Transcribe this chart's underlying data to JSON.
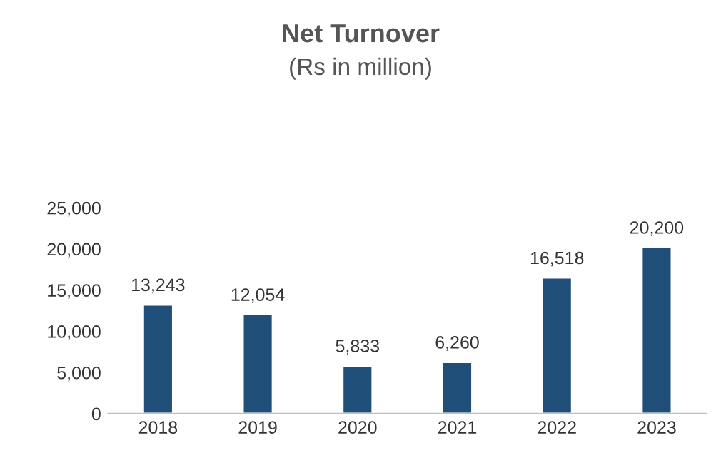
{
  "chart_data": {
    "type": "bar",
    "title": "Net Turnover",
    "subtitle": "(Rs in million)",
    "categories": [
      "2018",
      "2019",
      "2020",
      "2021",
      "2022",
      "2023"
    ],
    "values": [
      13243,
      12054,
      5833,
      6260,
      16518,
      20200
    ],
    "value_labels": [
      "13,243",
      "12,054",
      "5,833",
      "6,260",
      "16,518",
      "20,200"
    ],
    "color": "#1f4e79",
    "ylim": [
      0,
      25000
    ],
    "yticks": [
      {
        "value": 0,
        "label": "0"
      },
      {
        "value": 5000,
        "label": "5,000"
      },
      {
        "value": 10000,
        "label": "10,000"
      },
      {
        "value": 15000,
        "label": "15,000"
      },
      {
        "value": 20000,
        "label": "20,000"
      },
      {
        "value": 25000,
        "label": "25,000"
      }
    ],
    "grid": false,
    "legend": false
  }
}
